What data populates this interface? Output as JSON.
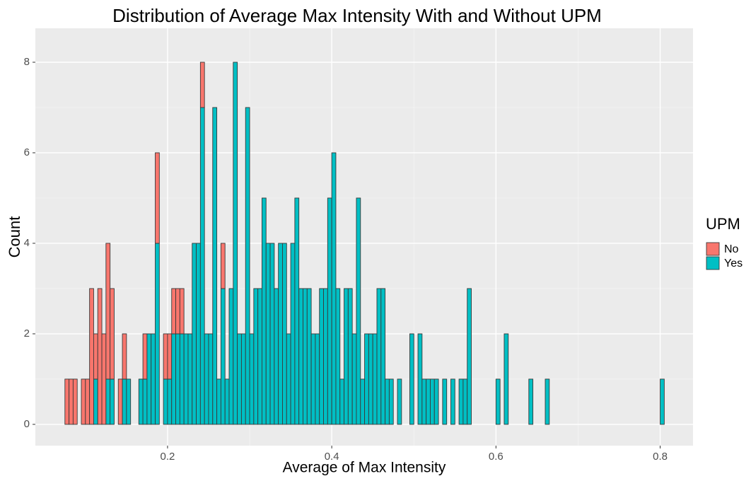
{
  "chart_data": {
    "type": "histogram",
    "title": "Distribution of Average Max Intensity With and Without UPM",
    "xlabel": "Average of Max Intensity",
    "ylabel": "Count",
    "legend_title": "UPM",
    "legend": "right",
    "grid": true,
    "stacked": true,
    "xlim": [
      0.039,
      0.84
    ],
    "ylim": [
      -0.47,
      8.75
    ],
    "xticks": [
      0.2,
      0.4,
      0.6,
      0.8
    ],
    "yticks": [
      0,
      2,
      4,
      6,
      8
    ],
    "bins": [
      0.075,
      0.08,
      0.085,
      0.09,
      0.095,
      0.1,
      0.105,
      0.11,
      0.115,
      0.12,
      0.125,
      0.13,
      0.135,
      0.14,
      0.145,
      0.15,
      0.155,
      0.16,
      0.165,
      0.17,
      0.175,
      0.18,
      0.185,
      0.19,
      0.195,
      0.2,
      0.205,
      0.21,
      0.215,
      0.22,
      0.225,
      0.23,
      0.235,
      0.24,
      0.245,
      0.25,
      0.255,
      0.26,
      0.265,
      0.27,
      0.275,
      0.28,
      0.285,
      0.29,
      0.295,
      0.3,
      0.305,
      0.31,
      0.315,
      0.32,
      0.325,
      0.33,
      0.335,
      0.34,
      0.345,
      0.35,
      0.355,
      0.36,
      0.365,
      0.37,
      0.375,
      0.38,
      0.385,
      0.39,
      0.395,
      0.4,
      0.405,
      0.41,
      0.415,
      0.42,
      0.425,
      0.43,
      0.435,
      0.44,
      0.445,
      0.45,
      0.455,
      0.46,
      0.465,
      0.47,
      0.475,
      0.48,
      0.485,
      0.49,
      0.495,
      0.5,
      0.505,
      0.51,
      0.515,
      0.52,
      0.525,
      0.53,
      0.535,
      0.54,
      0.545,
      0.55,
      0.555,
      0.56,
      0.565,
      0.57,
      0.575,
      0.58,
      0.585,
      0.59,
      0.595,
      0.6,
      0.605,
      0.61,
      0.615,
      0.62,
      0.625,
      0.63,
      0.635,
      0.64,
      0.645,
      0.65,
      0.655,
      0.66,
      0.665,
      0.67,
      0.675,
      0.68,
      0.685,
      0.69,
      0.695,
      0.7,
      0.705,
      0.71,
      0.715,
      0.72,
      0.725,
      0.73,
      0.735,
      0.74,
      0.745,
      0.75,
      0.755,
      0.76,
      0.765,
      0.77,
      0.775,
      0.78,
      0.785,
      0.79,
      0.795,
      0.8,
      0.805
    ],
    "series": [
      {
        "name": "No",
        "color": "#f8766d",
        "values": [
          1,
          1,
          1,
          0,
          1,
          1,
          3,
          1,
          3,
          2,
          3,
          2,
          0,
          1,
          1,
          0,
          0,
          0,
          0,
          1,
          0,
          0,
          2,
          0,
          1,
          1,
          1,
          1,
          1,
          0,
          0,
          0,
          0,
          1,
          0,
          0,
          0,
          0,
          1,
          0,
          0,
          0,
          0,
          0,
          0,
          0,
          0,
          0,
          0,
          0,
          0,
          0,
          0,
          0,
          0,
          0,
          0,
          0,
          0,
          0,
          0,
          0,
          0,
          0,
          0,
          0,
          0,
          0,
          0,
          0,
          0,
          0,
          0,
          0,
          0,
          0,
          0,
          0,
          0,
          0,
          0,
          0,
          0,
          0,
          0,
          0,
          0,
          0,
          0,
          0,
          0,
          0,
          0,
          0,
          0,
          0,
          0,
          0,
          0,
          0,
          0,
          0,
          0,
          0,
          0,
          0,
          0,
          0,
          0,
          0,
          0,
          0,
          0,
          0,
          0,
          0,
          0,
          0,
          0,
          0,
          0,
          0,
          0,
          0,
          0,
          0,
          0,
          0,
          0,
          0,
          0,
          0,
          0,
          0,
          0,
          0,
          0,
          0,
          0,
          0,
          0,
          0,
          0,
          0,
          0,
          0
        ]
      },
      {
        "name": "Yes",
        "color": "#00bfc4",
        "values": [
          0,
          0,
          0,
          0,
          0,
          0,
          0,
          1,
          0,
          0,
          1,
          1,
          0,
          0,
          1,
          1,
          0,
          0,
          1,
          1,
          2,
          2,
          4,
          0,
          1,
          1,
          2,
          2,
          2,
          2,
          2,
          4,
          4,
          7,
          2,
          2,
          7,
          1,
          3,
          1,
          3,
          8,
          2,
          2,
          7,
          2,
          3,
          3,
          5,
          4,
          4,
          3,
          4,
          4,
          2,
          4,
          5,
          3,
          3,
          3,
          2,
          2,
          3,
          3,
          5,
          6,
          3,
          1,
          3,
          3,
          2,
          5,
          1,
          2,
          2,
          2,
          3,
          3,
          1,
          1,
          0,
          1,
          0,
          0,
          2,
          0,
          2,
          1,
          1,
          1,
          1,
          0,
          1,
          0,
          1,
          0,
          1,
          1,
          3,
          0,
          0,
          0,
          0,
          0,
          0,
          1,
          0,
          2,
          0,
          0,
          0,
          0,
          0,
          1,
          0,
          0,
          0,
          1,
          0,
          0,
          0,
          0,
          0,
          0,
          0,
          0,
          0,
          0,
          0,
          0,
          0,
          0,
          0,
          0,
          0,
          0,
          0,
          0,
          0,
          0,
          0,
          0,
          0,
          0,
          0,
          1
        ]
      }
    ]
  }
}
